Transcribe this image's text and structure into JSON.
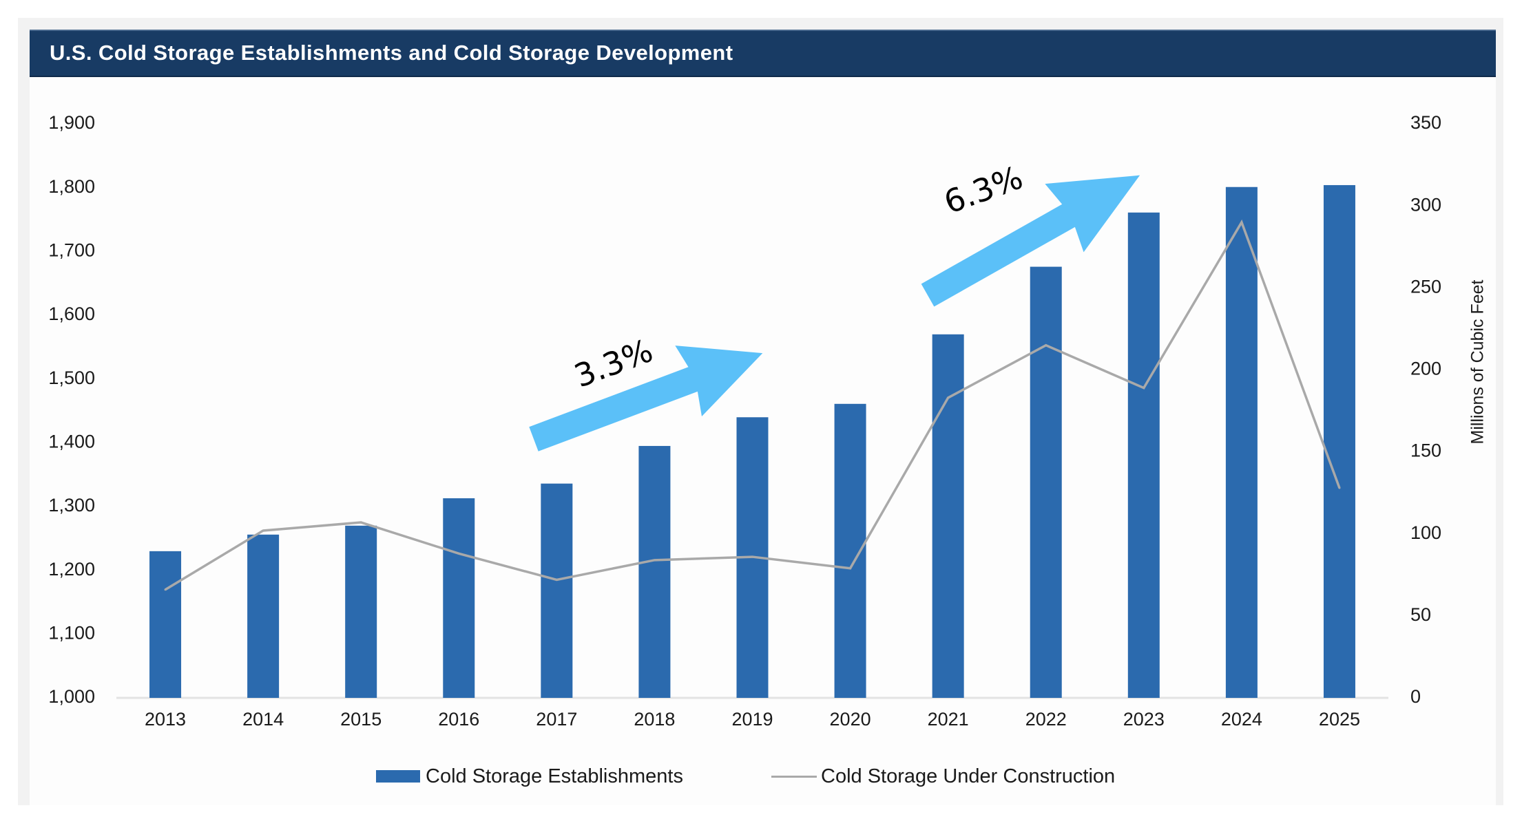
{
  "title": "U.S. Cold Storage Establishments and Cold Storage Development",
  "colors": {
    "title_bar": "#183b64",
    "bar": "#2b6aae",
    "line": "#a9a9a9",
    "arrow": "#5bc0f8",
    "frame": "#f2f2f2"
  },
  "chart_data": {
    "type": "bar+line",
    "title": "U.S. Cold Storage Establishments and Cold Storage Development",
    "categories": [
      "2013",
      "2014",
      "2015",
      "2016",
      "2017",
      "2018",
      "2019",
      "2020",
      "2021",
      "2022",
      "2023",
      "2024",
      "2025"
    ],
    "series": [
      {
        "name": "Cold Storage Establishments",
        "type": "bar",
        "axis": "left",
        "values": [
          1230,
          1256,
          1270,
          1313,
          1336,
          1395,
          1440,
          1461,
          1570,
          1676,
          1761,
          1801,
          1804
        ]
      },
      {
        "name": "Cold Storage Under Construction",
        "type": "line",
        "axis": "right",
        "values": [
          66,
          102,
          107,
          88,
          72,
          84,
          86,
          79,
          183,
          215,
          189,
          290,
          128
        ]
      }
    ],
    "left_axis": {
      "label": "",
      "ylim": [
        1000,
        1900
      ],
      "ticks": [
        1000,
        1100,
        1200,
        1300,
        1400,
        1500,
        1600,
        1700,
        1800,
        1900
      ],
      "tick_labels": [
        "1,000",
        "1,100",
        "1,200",
        "1,300",
        "1,400",
        "1,500",
        "1,600",
        "1,700",
        "1,800",
        "1,900"
      ]
    },
    "right_axis": {
      "label": "Millions of Cubic Feet",
      "ylim": [
        0,
        350
      ],
      "ticks": [
        0,
        50,
        100,
        150,
        200,
        250,
        300,
        350
      ],
      "tick_labels": [
        "0",
        "50",
        "100",
        "150",
        "200",
        "250",
        "300",
        "350"
      ]
    },
    "xlabel": "",
    "grid": false,
    "legend": {
      "position": "bottom",
      "entries": [
        "Cold Storage Establishments",
        "Cold Storage Under Construction"
      ]
    },
    "annotations": [
      {
        "text": "3.3%",
        "type": "arrow",
        "from_category": "2017",
        "to_category": "2019"
      },
      {
        "text": "6.3%",
        "type": "arrow",
        "from_category": "2021",
        "to_category": "2023"
      }
    ]
  }
}
